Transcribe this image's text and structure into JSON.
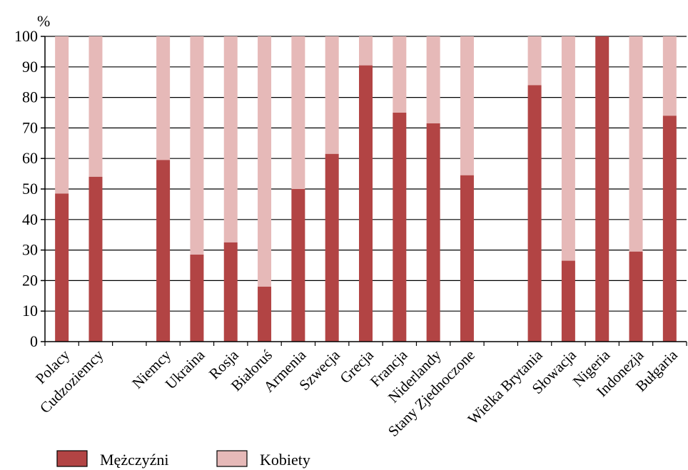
{
  "chart_data": {
    "type": "bar",
    "stacked": true,
    "ylabel": "%",
    "ylim": [
      0,
      100
    ],
    "yticks": [
      0,
      10,
      20,
      30,
      40,
      50,
      60,
      70,
      80,
      90,
      100
    ],
    "grid": true,
    "legend_position": "bottom-left",
    "categories": [
      "Polacy",
      "Cudzoziemcy",
      "",
      "Niemcy",
      "Ukraina",
      "Rosja",
      "Białoruś",
      "Armenia",
      "Szwecja",
      "Grecja",
      "Francja",
      "Niderlandy",
      "Stany Zjednoczone",
      "",
      "Wielka Brytania",
      "Słowacja",
      "Nigeria",
      "Indonezja",
      "Bułgaria"
    ],
    "series": [
      {
        "name": "Mężczyźni",
        "color": "#b24444",
        "values": [
          48.5,
          54,
          null,
          59.5,
          28.5,
          32.5,
          18,
          50,
          61.5,
          90.5,
          75,
          71.5,
          54.5,
          null,
          84,
          26.5,
          100,
          29.5,
          74
        ]
      },
      {
        "name": "Kobiety",
        "color": "#e6b9b8",
        "values": [
          51.5,
          46,
          null,
          40.5,
          71.5,
          67.5,
          82,
          50,
          38.5,
          9.5,
          25,
          28.5,
          45.5,
          null,
          16,
          73.5,
          0,
          70.5,
          26
        ]
      }
    ]
  }
}
